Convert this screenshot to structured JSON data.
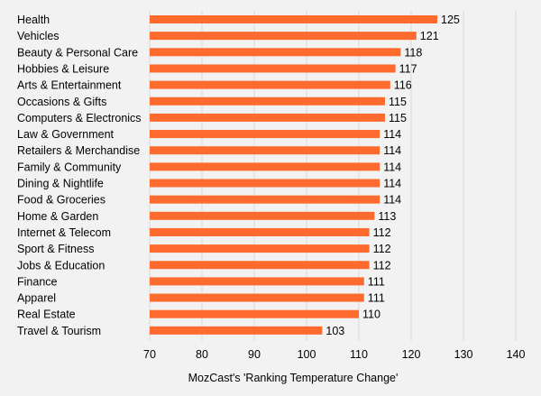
{
  "chart_data": {
    "type": "bar",
    "orientation": "horizontal",
    "categories": [
      "Health",
      "Vehicles",
      "Beauty & Personal Care",
      "Hobbies & Leisure",
      "Arts & Entertainment",
      "Occasions & Gifts",
      "Computers & Electronics",
      "Law & Government",
      "Retailers & Merchandise",
      "Family & Community",
      "Dining & Nightlife",
      "Food & Groceries",
      "Home & Garden",
      "Internet & Telecom",
      "Sport & Fitness",
      "Jobs & Education",
      "Finance",
      "Apparel",
      "Real Estate",
      "Travel & Tourism"
    ],
    "values": [
      125,
      121,
      118,
      117,
      116,
      115,
      115,
      114,
      114,
      114,
      114,
      114,
      113,
      112,
      112,
      112,
      111,
      111,
      110,
      103
    ],
    "title": "",
    "xlabel": "MozCast's 'Ranking Temperature Change'",
    "ylabel": "",
    "xlim": [
      70,
      140
    ],
    "xticks": [
      70,
      80,
      90,
      100,
      110,
      120,
      130,
      140
    ],
    "data_labels": true,
    "grid": "vertical",
    "legend": "none",
    "colors": {
      "bar": "#ff6a2f",
      "grid": "#d9d9d9",
      "background": "#f2f2f2",
      "text": "#000000"
    }
  }
}
